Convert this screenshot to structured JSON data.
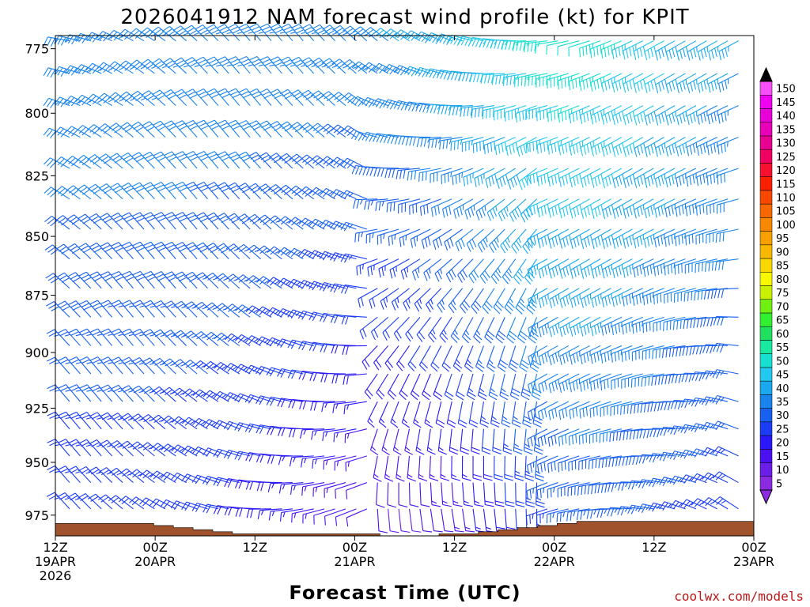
{
  "chart_data": {
    "type": "wind-barb-time-height",
    "title": "2026041912 NAM forecast wind profile (kt) for KPIT",
    "xlabel": "Forecast Time (UTC)",
    "credit": "coolwx.com/models",
    "y_axis": {
      "label": "",
      "ticks": [
        775,
        800,
        825,
        850,
        875,
        900,
        925,
        950,
        975
      ],
      "range": [
        770,
        985
      ],
      "scale": "log"
    },
    "x_axis": {
      "range": [
        "2026-04-19T12:00Z",
        "2026-04-23T00:00Z"
      ],
      "ticks": [
        {
          "l1": "12Z",
          "l2": "19APR",
          "l3": "2026"
        },
        {
          "l1": "00Z",
          "l2": "20APR",
          "l3": ""
        },
        {
          "l1": "12Z",
          "l2": "",
          "l3": ""
        },
        {
          "l1": "00Z",
          "l2": "21APR",
          "l3": ""
        },
        {
          "l1": "12Z",
          "l2": "",
          "l3": ""
        },
        {
          "l1": "00Z",
          "l2": "22APR",
          "l3": ""
        },
        {
          "l1": "12Z",
          "l2": "",
          "l3": ""
        },
        {
          "l1": "00Z",
          "l2": "23APR",
          "l3": ""
        }
      ]
    },
    "colorbar": {
      "values": [
        5,
        10,
        15,
        20,
        25,
        30,
        35,
        40,
        45,
        50,
        55,
        60,
        65,
        70,
        75,
        80,
        85,
        90,
        95,
        100,
        105,
        110,
        115,
        120,
        125,
        130,
        135,
        140,
        145,
        150
      ],
      "colors": [
        "#8a2be2",
        "#6a1ee8",
        "#4a10f0",
        "#2a18f8",
        "#1a3cf5",
        "#1860f0",
        "#1a84ee",
        "#1aa8ee",
        "#22c8ee",
        "#18e0d0",
        "#18e8a0",
        "#20e060",
        "#30f030",
        "#70f010",
        "#c8f000",
        "#f8f800",
        "#f8d800",
        "#f8b800",
        "#f8a000",
        "#f88800",
        "#f86800",
        "#f84800",
        "#f82000",
        "#f81030",
        "#f00060",
        "#e80090",
        "#e800b8",
        "#e800d8",
        "#f000f0",
        "#f850f8"
      ]
    },
    "terrain": {
      "color": "#a0522d",
      "surface_pressure_hpa": [
        979,
        979,
        979,
        979,
        979,
        979,
        979,
        979,
        979,
        979,
        980,
        980,
        981,
        981,
        982,
        982,
        983,
        983,
        984,
        984,
        984,
        984,
        984,
        984,
        984,
        984,
        984,
        984,
        984,
        984,
        984,
        984,
        984,
        985,
        985,
        985,
        985,
        985,
        985,
        984,
        984,
        984,
        984,
        983,
        983,
        982,
        982,
        981,
        981,
        980,
        980,
        979,
        979,
        978,
        978,
        978,
        978,
        978,
        978,
        978,
        978,
        978,
        978,
        978,
        978,
        978,
        978,
        978,
        978,
        978,
        978
      ]
    }
  }
}
